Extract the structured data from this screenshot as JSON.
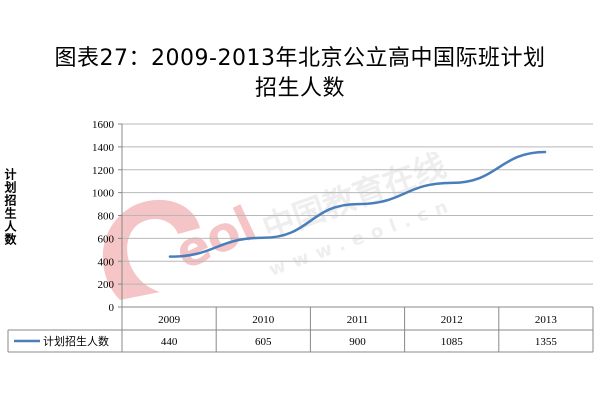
{
  "chart_data": {
    "type": "line",
    "title": "图表27：2009-2013年北京公立高中国际班计划招生人数",
    "xlabel": "",
    "ylabel": "计划招生人数",
    "categories": [
      "2009",
      "2010",
      "2011",
      "2012",
      "2013"
    ],
    "series": [
      {
        "name": "计划招生人数",
        "values": [
          440,
          605,
          900,
          1085,
          1355
        ],
        "color": "#4a7ebb"
      }
    ],
    "ylim": [
      0,
      1600
    ],
    "yticks": [
      0,
      200,
      400,
      600,
      800,
      1000,
      1200,
      1400,
      1600
    ],
    "grid": true,
    "legend": "left of data table",
    "data_table": true
  },
  "watermark": {
    "logo_text": "eol",
    "brand_text": "中国教育在线",
    "url_text": "www.eol.cn"
  }
}
